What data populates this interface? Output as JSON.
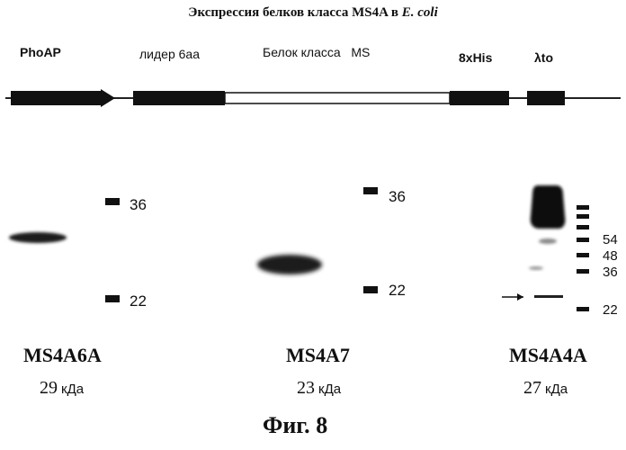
{
  "title": {
    "prefix": "Экспрессия белков класса MS4A в ",
    "organism": "E. coli"
  },
  "construct": {
    "segments": [
      {
        "label": "PhoAP"
      },
      {
        "label": "лидер 6аа"
      },
      {
        "label": "Белок класса   MS"
      },
      {
        "label": "8xHis"
      },
      {
        "label": "λto"
      }
    ]
  },
  "gels": [
    {
      "name": "MS4A6A",
      "kda_value": "29",
      "kda_unit": "кДа",
      "markers": [
        "36",
        "22"
      ]
    },
    {
      "name": "MS4A7",
      "kda_value": "23",
      "kda_unit": "кДа",
      "markers": [
        "36",
        "22"
      ]
    },
    {
      "name": "MS4A4A",
      "kda_value": "27",
      "kda_unit": "кДа",
      "markers": [
        "54",
        "48",
        "36",
        "22"
      ]
    }
  ],
  "figure_caption": {
    "prefix": "Фиг.",
    "number": "8"
  },
  "colors": {
    "ink": "#111111",
    "band": "#1a1a1a",
    "background": "#ffffff"
  }
}
